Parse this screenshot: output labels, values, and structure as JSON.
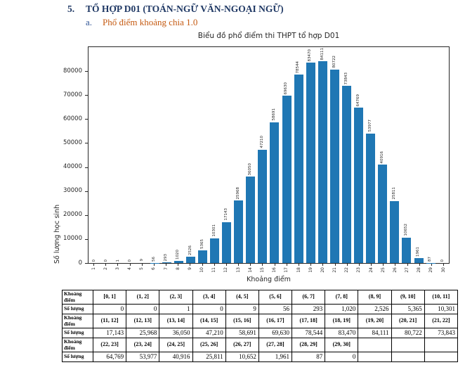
{
  "page": {
    "heading_number": "5.",
    "heading_text": "TỔ HỢP D01 (TOÁN-NGỮ VĂN-NGOẠI NGỮ)",
    "sub_letter": "a.",
    "sub_text": "Phổ điểm khoảng chia 1.0"
  },
  "chart_data": {
    "type": "bar",
    "title": "Biểu đồ phổ điểm thi THPT tổ hợp D01",
    "xlabel": "Khoảng điểm",
    "ylabel": "Số lượng học sinh",
    "categories": [
      1,
      2,
      3,
      4,
      5,
      6,
      7,
      8,
      9,
      10,
      11,
      12,
      13,
      14,
      15,
      16,
      17,
      18,
      19,
      20,
      21,
      22,
      23,
      24,
      25,
      26,
      27,
      28,
      29,
      30
    ],
    "values": [
      0,
      0,
      1,
      0,
      9,
      56,
      293,
      1020,
      2526,
      5365,
      10301,
      17143,
      25968,
      36050,
      47210,
      58691,
      69630,
      78544,
      83470,
      84111,
      80722,
      73843,
      64769,
      53977,
      40916,
      25811,
      10652,
      1961,
      87,
      0
    ],
    "yticks": [
      0,
      10000,
      20000,
      30000,
      40000,
      50000,
      60000,
      70000,
      80000
    ],
    "ylim": [
      0,
      90000
    ],
    "bar_color": "#1f77b4",
    "legend": "none",
    "grid": "off",
    "bar_value_labels": "shown above each bar, rotated 90"
  },
  "table": {
    "rows": [
      {
        "label": "Khoảng điểm",
        "type": "range",
        "cells": [
          "[0, 1]",
          "(1, 2]",
          "(2, 3]",
          "(3, 4]",
          "(4, 5]",
          "(5, 6]",
          "(6, 7]",
          "(7, 8]",
          "(8, 9]",
          "(9, 10]",
          "(10, 11]"
        ]
      },
      {
        "label": "Số lượng",
        "type": "count",
        "cells": [
          "0",
          "0",
          "1",
          "0",
          "9",
          "56",
          "293",
          "1,020",
          "2,526",
          "5,365",
          "10,301"
        ]
      },
      {
        "label": "Khoảng điểm",
        "type": "range",
        "cells": [
          "(11, 12]",
          "(12, 13]",
          "(13, 14]",
          "(14, 15]",
          "(15, 16]",
          "(16, 17]",
          "(17, 18]",
          "(18, 19]",
          "(19, 20]",
          "(20, 21]",
          "(21, 22]"
        ]
      },
      {
        "label": "Số lượng",
        "type": "count",
        "cells": [
          "17,143",
          "25,968",
          "36,050",
          "47,210",
          "58,691",
          "69,630",
          "78,544",
          "83,470",
          "84,111",
          "80,722",
          "73,843"
        ]
      },
      {
        "label": "Khoảng điểm",
        "type": "range",
        "cells": [
          "(22, 23]",
          "(23, 24]",
          "(24, 25]",
          "(25, 26]",
          "(26, 27]",
          "(27, 28]",
          "(28, 29]",
          "(29, 30]",
          "",
          "",
          ""
        ]
      },
      {
        "label": "Số lượng",
        "type": "count",
        "cells": [
          "64,769",
          "53,977",
          "40,916",
          "25,811",
          "10,652",
          "1,961",
          "87",
          "0",
          "",
          "",
          ""
        ]
      }
    ]
  },
  "colors": {
    "heading": "#1F3864",
    "sub_letter": "#2F5496",
    "sub_text": "#C55A11",
    "bar": "#1f77b4",
    "axis": "#262626",
    "table_border": "#000000"
  }
}
